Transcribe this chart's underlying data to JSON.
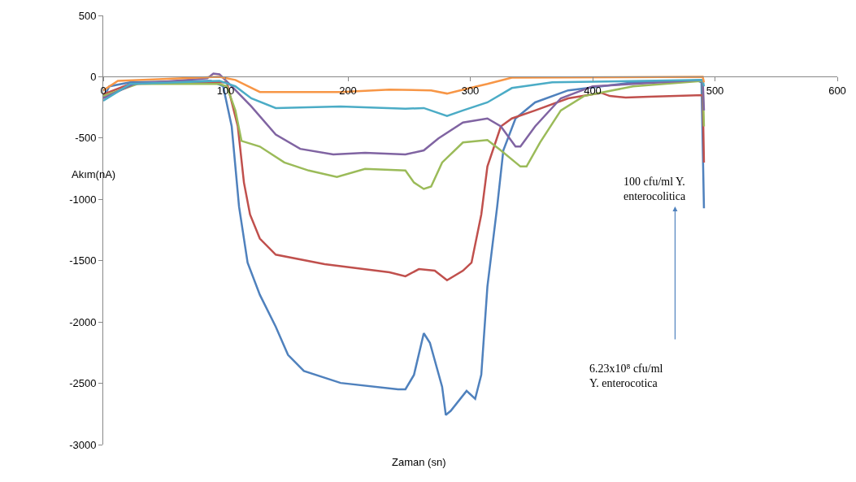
{
  "chart_data": {
    "type": "line",
    "xlabel": "Zaman (sn)",
    "ylabel": "Akım(nA)",
    "xlim": [
      0,
      600
    ],
    "xticks": [
      0,
      100,
      200,
      300,
      400,
      500,
      600
    ],
    "ylim": [
      -3000,
      500
    ],
    "yticks": [
      -3000,
      -2500,
      -2000,
      -1500,
      -1000,
      -500,
      0,
      500
    ],
    "grid": false,
    "marker": "none",
    "line_style": "solid",
    "annotations": [
      "100 cfu/ml Y.\nenterocolitica",
      "6.23x10⁸ cfu/ml\nY. enterocotica"
    ],
    "series": [
      {
        "color": "#4f81bd",
        "x": [
          0,
          5,
          22,
          88,
          98,
          105,
          111,
          118,
          128,
          141,
          151,
          164,
          194,
          241,
          247,
          254,
          262,
          267,
          277,
          280,
          284,
          297,
          304,
          309,
          314,
          322,
          327,
          337,
          353,
          380,
          433,
          486,
          489,
          491
        ],
        "values": [
          -176,
          -78,
          -46,
          -33,
          -78,
          -405,
          -1059,
          -1516,
          -1778,
          -2039,
          -2268,
          -2399,
          -2497,
          -2549,
          -2549,
          -2431,
          -2092,
          -2170,
          -2529,
          -2758,
          -2725,
          -2562,
          -2627,
          -2431,
          -1712,
          -1059,
          -601,
          -340,
          -209,
          -111,
          -46,
          -33,
          -46,
          -1072
        ]
      },
      {
        "color": "#c0504d",
        "x": [
          0,
          22,
          95,
          101,
          110,
          115,
          120,
          128,
          141,
          181,
          234,
          247,
          258,
          271,
          281,
          294,
          301,
          309,
          314,
          325,
          334,
          353,
          380,
          407,
          414,
          427,
          446,
          490,
          491
        ],
        "values": [
          -144,
          -59,
          -46,
          -46,
          -405,
          -863,
          -1124,
          -1320,
          -1451,
          -1529,
          -1595,
          -1627,
          -1569,
          -1582,
          -1660,
          -1582,
          -1516,
          -1124,
          -732,
          -405,
          -340,
          -275,
          -176,
          -131,
          -157,
          -170,
          -163,
          -150,
          -700
        ]
      },
      {
        "color": "#9bbb59",
        "x": [
          0,
          28,
          95,
          101,
          108,
          113,
          128,
          148,
          168,
          191,
          214,
          247,
          254,
          262,
          268,
          277,
          294,
          314,
          325,
          341,
          346,
          357,
          374,
          393,
          433,
          490,
          491
        ],
        "values": [
          -157,
          -59,
          -59,
          -78,
          -275,
          -523,
          -569,
          -699,
          -765,
          -817,
          -752,
          -765,
          -863,
          -915,
          -895,
          -699,
          -536,
          -516,
          -601,
          -732,
          -732,
          -536,
          -275,
          -157,
          -78,
          -33,
          -405
        ]
      },
      {
        "color": "#8064a2",
        "x": [
          0,
          25,
          85,
          90,
          95,
          105,
          121,
          141,
          161,
          188,
          214,
          247,
          262,
          274,
          294,
          314,
          325,
          337,
          341,
          353,
          374,
          400,
          490,
          491
        ],
        "values": [
          -176,
          -59,
          -13,
          26,
          20,
          -78,
          -242,
          -471,
          -588,
          -634,
          -621,
          -634,
          -601,
          -503,
          -373,
          -340,
          -405,
          -569,
          -569,
          -405,
          -176,
          -78,
          -26,
          -275
        ]
      },
      {
        "color": "#4bacc6",
        "x": [
          0,
          22,
          95,
          108,
          121,
          141,
          194,
          247,
          262,
          281,
          294,
          314,
          334,
          367,
          490,
          491
        ],
        "values": [
          -196,
          -59,
          -33,
          -78,
          -176,
          -255,
          -242,
          -261,
          -255,
          -320,
          -275,
          -209,
          -92,
          -46,
          -26,
          -78
        ]
      },
      {
        "color": "#f79646",
        "x": [
          0,
          12,
          95,
          108,
          128,
          194,
          234,
          268,
          281,
          297,
          314,
          334,
          490,
          491
        ],
        "values": [
          -111,
          -33,
          0,
          -26,
          -124,
          -124,
          -105,
          -111,
          -137,
          -98,
          -59,
          -7,
          0,
          -46
        ]
      }
    ]
  }
}
